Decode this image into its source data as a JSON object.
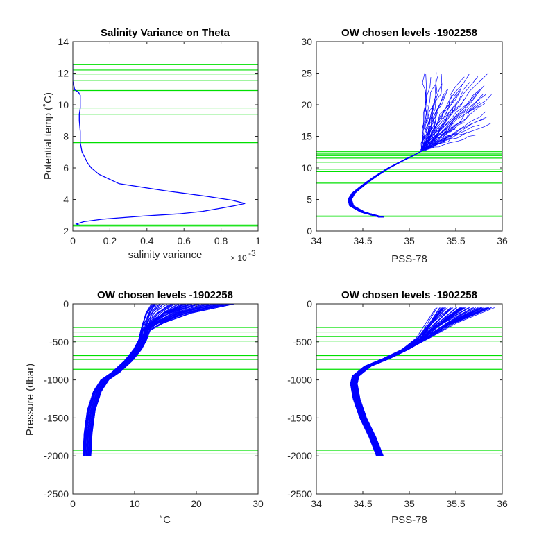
{
  "figure": {
    "level_color": "#00e000",
    "profile_color": "#0000ff",
    "axes_color": "#262626"
  },
  "chart_data": [
    {
      "type": "line",
      "title": "Salinity Variance on Theta",
      "xlabel": "salinity variance",
      "ylabel": "Potential temp (˚C)",
      "x_exponent_prefix": "× 10",
      "x_exponent": "-3",
      "xlim": [
        0,
        1
      ],
      "ylim": [
        2,
        14
      ],
      "xticks": [
        0,
        0.2,
        0.4,
        0.6,
        0.8,
        1
      ],
      "xtick_labels": [
        "0",
        "0.2",
        "0.4",
        "0.6",
        "0.8",
        "1"
      ],
      "yticks": [
        2,
        4,
        6,
        8,
        10,
        12,
        14
      ],
      "ytick_labels": [
        "2",
        "4",
        "6",
        "8",
        "10",
        "12",
        "14"
      ],
      "series": [
        {
          "x": [
            0.04,
            0.02,
            0.06,
            0.16,
            0.38,
            0.58,
            0.7,
            0.8,
            0.87,
            0.93,
            0.86,
            0.72,
            0.5,
            0.25,
            0.14,
            0.1,
            0.08,
            0.05,
            0.04,
            0.04,
            0.035,
            0.035,
            0.04,
            0.04,
            0.04,
            0.03,
            0.01,
            0.0,
            0.0,
            0.0
          ],
          "y": [
            2.35,
            2.45,
            2.6,
            2.75,
            2.95,
            3.1,
            3.25,
            3.45,
            3.6,
            3.75,
            3.95,
            4.2,
            4.55,
            5.0,
            5.6,
            6.0,
            6.3,
            7.0,
            7.6,
            8.3,
            9.0,
            9.4,
            9.8,
            10.2,
            10.6,
            10.8,
            10.95,
            11.5,
            12.0,
            12.6
          ]
        }
      ],
      "levels": [
        12.56,
        12.2,
        11.95,
        11.55,
        10.9,
        9.8,
        9.4,
        7.6,
        2.38,
        2.32
      ]
    },
    {
      "type": "line",
      "title": "OW chosen levels -1902258",
      "xlabel": "PSS-78",
      "ylabel": "",
      "xlim": [
        34,
        36
      ],
      "ylim": [
        0,
        30
      ],
      "xticks": [
        34,
        34.5,
        35,
        35.5,
        36
      ],
      "xtick_labels": [
        "34",
        "34.5",
        "35",
        "35.5",
        "36"
      ],
      "yticks": [
        0,
        5,
        10,
        15,
        20,
        25,
        30
      ],
      "ytick_labels": [
        "0",
        "5",
        "10",
        "15",
        "20",
        "25",
        "30"
      ],
      "series": [
        {
          "x": [
            34.7,
            34.5,
            34.38,
            34.36,
            34.4,
            34.5,
            34.62,
            34.78,
            34.95,
            35.05,
            35.15
          ],
          "y": [
            2.2,
            3.0,
            4.0,
            5.0,
            6.0,
            7.2,
            8.5,
            10.0,
            11.3,
            12.0,
            12.8
          ]
        }
      ],
      "surface_spread": {
        "x_min": 35.1,
        "x_max": 35.9,
        "y_min": 13,
        "y_max": 25.5
      },
      "levels": [
        12.56,
        12.2,
        11.95,
        11.55,
        10.9,
        9.8,
        9.4,
        7.6,
        2.38,
        2.32
      ]
    },
    {
      "type": "line",
      "title": "OW chosen levels -1902258",
      "xlabel": "˚C",
      "ylabel": "Pressure (dbar)",
      "xlim": [
        0,
        30
      ],
      "ylim": [
        -2500,
        0
      ],
      "xticks": [
        0,
        10,
        20,
        30
      ],
      "xtick_labels": [
        "0",
        "10",
        "20",
        "30"
      ],
      "yticks": [
        0,
        -500,
        -1000,
        -1500,
        -2000,
        -2500
      ],
      "ytick_labels": [
        "0",
        "-500",
        "-1000",
        "-1500",
        "-2000",
        "-2500"
      ],
      "series": [
        {
          "x": [
            2.3,
            2.5,
            3.0,
            4.0,
            5.2,
            7.0,
            9.0,
            10.5,
            11.3,
            11.6,
            11.8,
            12.2,
            13.0
          ],
          "y": [
            -2000,
            -1700,
            -1400,
            -1150,
            -1000,
            -900,
            -750,
            -600,
            -480,
            -350,
            -250,
            -120,
            0
          ]
        }
      ],
      "surface_spread": {
        "x_min": 11.0,
        "x_max": 26.0
      },
      "levels": [
        -310,
        -370,
        -430,
        -490,
        -680,
        -730,
        -860,
        -1925,
        -1975
      ]
    },
    {
      "type": "line",
      "title": "OW chosen levels -1902258",
      "xlabel": "PSS-78",
      "ylabel": "",
      "xlim": [
        34,
        36
      ],
      "ylim": [
        -2500,
        0
      ],
      "xticks": [
        34,
        34.5,
        35,
        35.5,
        36
      ],
      "xtick_labels": [
        "34",
        "34.5",
        "35",
        "35.5",
        "36"
      ],
      "yticks": [
        0,
        -500,
        -1000,
        -1500,
        -2000,
        -2500
      ],
      "ytick_labels": [
        "0",
        "-500",
        "-1000",
        "-1500",
        "-2000",
        "-2500"
      ],
      "series": [
        {
          "x": [
            34.68,
            34.6,
            34.5,
            34.43,
            34.4,
            34.42,
            34.55,
            34.75,
            34.95,
            35.1,
            35.2,
            35.3
          ],
          "y": [
            -2000,
            -1750,
            -1500,
            -1250,
            -1050,
            -950,
            -820,
            -720,
            -600,
            -450,
            -250,
            -50
          ]
        }
      ],
      "surface_spread": {
        "x_min": 35.1,
        "x_max": 35.9
      },
      "levels": [
        -310,
        -370,
        -430,
        -490,
        -680,
        -730,
        -860,
        -1925,
        -1975
      ]
    }
  ]
}
